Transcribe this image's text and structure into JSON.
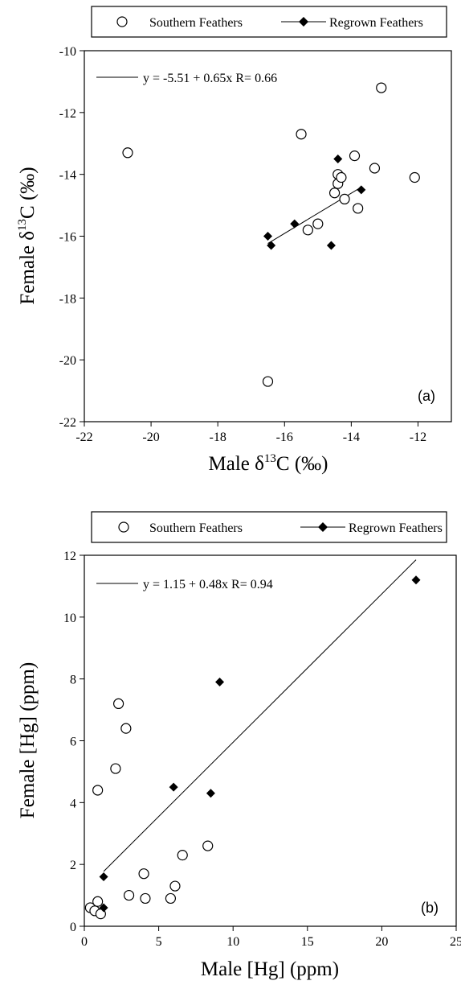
{
  "chart_data": [
    {
      "type": "scatter",
      "panel_label": "(a)",
      "xlabel": "Male δ13C (‰)",
      "ylabel": "Female δ13C (‰)",
      "xlim": [
        -22,
        -11
      ],
      "ylim": [
        -22,
        -10
      ],
      "xticks": [
        -22,
        -20,
        -18,
        -16,
        -14,
        -12
      ],
      "yticks": [
        -22,
        -20,
        -18,
        -16,
        -14,
        -12,
        -10
      ],
      "tick_labels_x": [
        "-22",
        "-20",
        "-18",
        "-16",
        "-14",
        "-12"
      ],
      "tick_labels_y": [
        "-22",
        "-20",
        "-18",
        "-16",
        "-14",
        "-12",
        "-10"
      ],
      "legend": {
        "placement": "top",
        "entries": [
          "Southern Feathers",
          "Regrown Feathers"
        ]
      },
      "series": [
        {
          "name": "Southern Feathers",
          "marker": "open-circle",
          "points": [
            [
              -20.7,
              -13.3
            ],
            [
              -16.5,
              -20.7
            ],
            [
              -15.5,
              -12.7
            ],
            [
              -15.3,
              -15.8
            ],
            [
              -15.0,
              -15.6
            ],
            [
              -14.5,
              -14.6
            ],
            [
              -14.4,
              -14.0
            ],
            [
              -14.4,
              -14.3
            ],
            [
              -14.3,
              -14.1
            ],
            [
              -14.2,
              -14.8
            ],
            [
              -13.9,
              -13.4
            ],
            [
              -13.8,
              -15.1
            ],
            [
              -13.3,
              -13.8
            ],
            [
              -13.1,
              -11.2
            ],
            [
              -12.1,
              -14.1
            ]
          ]
        },
        {
          "name": "Regrown Feathers",
          "marker": "filled-diamond",
          "points": [
            [
              -16.5,
              -16.0
            ],
            [
              -16.4,
              -16.3
            ],
            [
              -15.7,
              -15.6
            ],
            [
              -14.6,
              -16.3
            ],
            [
              -14.4,
              -13.5
            ],
            [
              -13.7,
              -14.5
            ]
          ]
        }
      ],
      "regression": {
        "label": "y = -5.51 + 0.65x   R= 0.66",
        "intercept": -5.51,
        "slope": 0.65,
        "x_range": [
          -16.5,
          -13.7
        ]
      }
    },
    {
      "type": "scatter",
      "panel_label": "(b)",
      "xlabel": "Male [Hg] (ppm)",
      "ylabel": "Female [Hg] (ppm)",
      "xlim": [
        0,
        25
      ],
      "ylim": [
        0,
        12
      ],
      "xticks": [
        0,
        5,
        10,
        15,
        20,
        25
      ],
      "yticks": [
        0,
        2,
        4,
        6,
        8,
        10,
        12
      ],
      "tick_labels_x": [
        "0",
        "5",
        "10",
        "15",
        "20",
        "25"
      ],
      "tick_labels_y": [
        "0",
        "2",
        "4",
        "6",
        "8",
        "10",
        "12"
      ],
      "legend": {
        "placement": "top",
        "entries": [
          "Southern Feathers",
          "Regrown Feathers"
        ]
      },
      "series": [
        {
          "name": "Southern Feathers",
          "marker": "open-circle",
          "points": [
            [
              0.4,
              0.6
            ],
            [
              0.7,
              0.5
            ],
            [
              0.9,
              0.8
            ],
            [
              1.1,
              0.4
            ],
            [
              0.9,
              4.4
            ],
            [
              2.1,
              5.1
            ],
            [
              2.3,
              7.2
            ],
            [
              2.8,
              6.4
            ],
            [
              3.0,
              1.0
            ],
            [
              4.0,
              1.7
            ],
            [
              4.1,
              0.9
            ],
            [
              5.8,
              0.9
            ],
            [
              6.1,
              1.3
            ],
            [
              6.6,
              2.3
            ],
            [
              8.3,
              2.6
            ]
          ]
        },
        {
          "name": "Regrown Feathers",
          "marker": "filled-diamond",
          "points": [
            [
              1.3,
              0.6
            ],
            [
              1.3,
              1.6
            ],
            [
              6.0,
              4.5
            ],
            [
              8.5,
              4.3
            ],
            [
              9.1,
              7.9
            ],
            [
              22.3,
              11.2
            ]
          ]
        }
      ],
      "regression": {
        "label": "y = 1.15 + 0.48x   R= 0.94",
        "intercept": 1.15,
        "slope": 0.48,
        "x_range": [
          1.3,
          22.3
        ]
      }
    }
  ]
}
